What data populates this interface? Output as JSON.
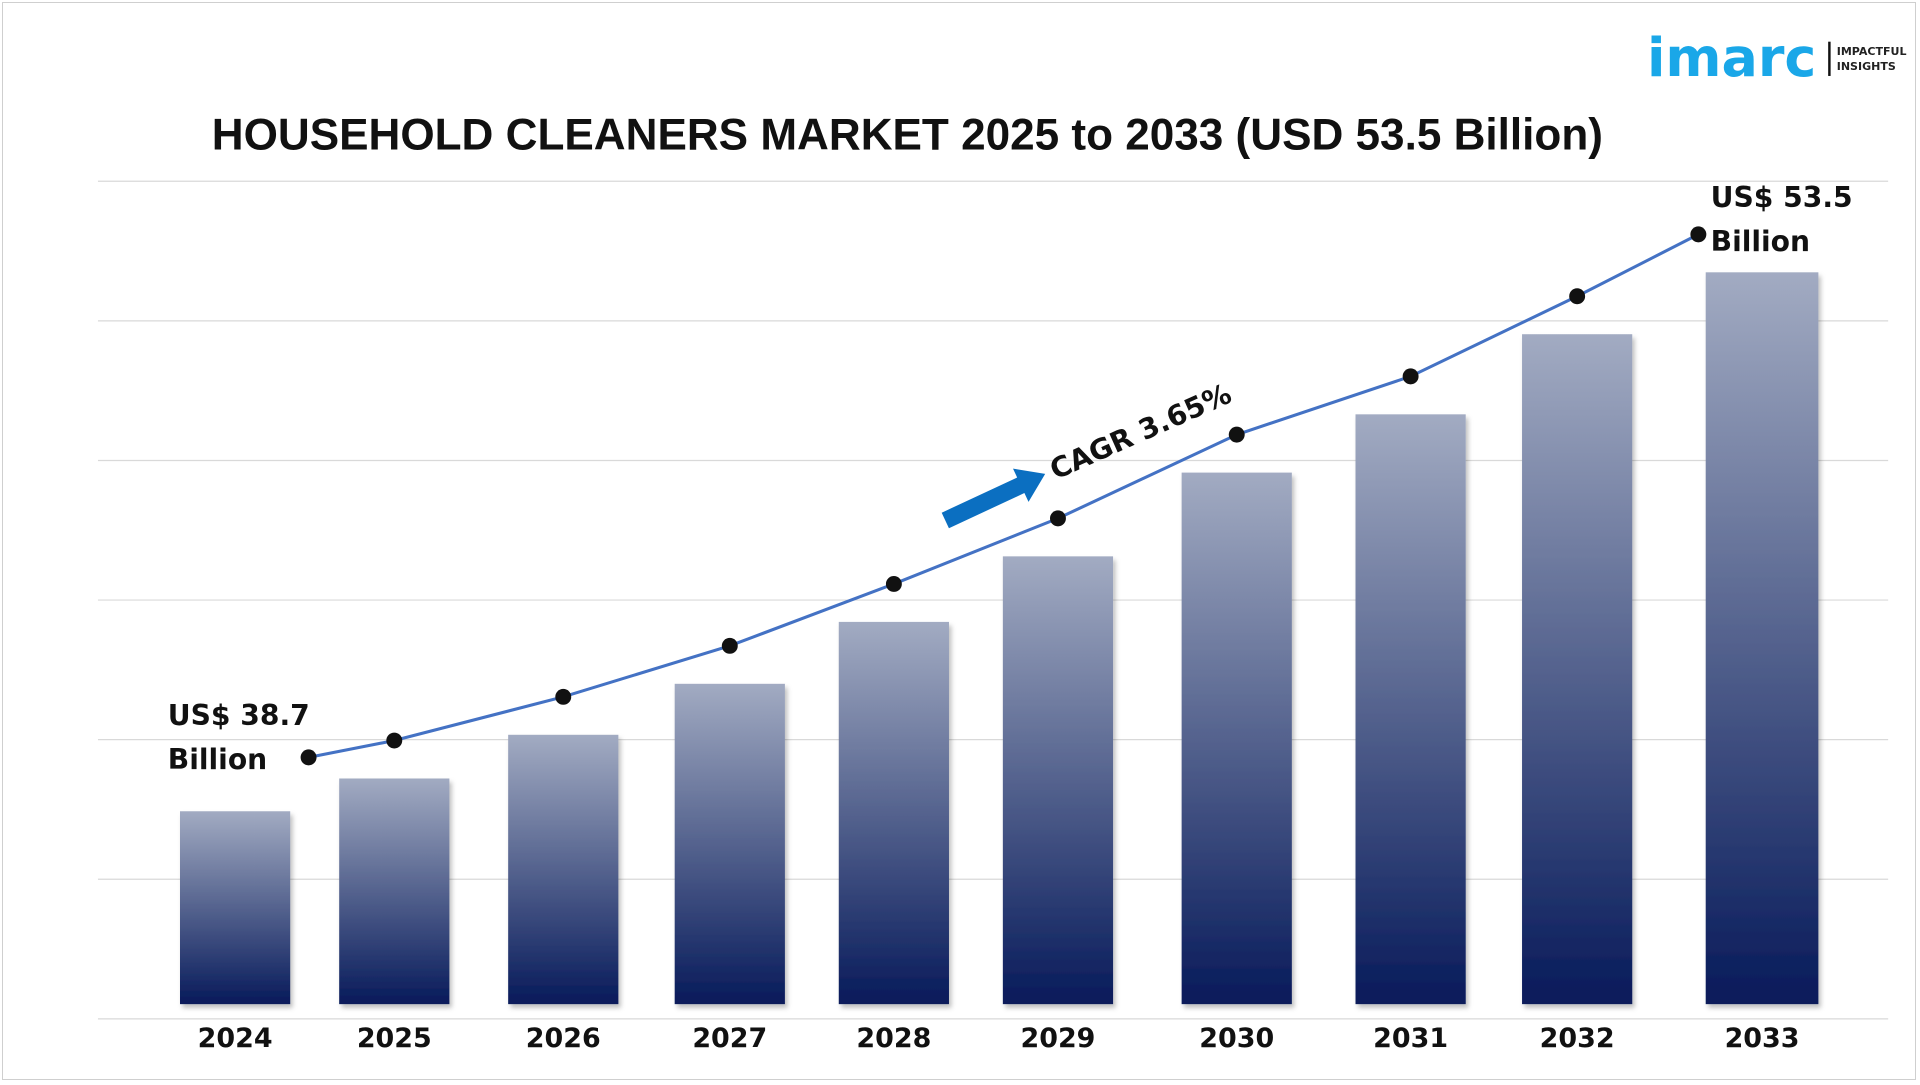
{
  "logo": {
    "brand": "imarc",
    "tagline_1": "IMPACTFUL",
    "tagline_2": "INSIGHTS"
  },
  "chart_data": {
    "type": "bar",
    "title": "HOUSEHOLD CLEANERS MARKET 2025 to 2033 (USD 53.5 Billion)",
    "categories": [
      "2024",
      "2025",
      "2026",
      "2027",
      "2028",
      "2029",
      "2030",
      "2031",
      "2032",
      "2033"
    ],
    "values": [
      38.7,
      39.6,
      40.8,
      42.2,
      43.9,
      45.7,
      48.0,
      49.6,
      51.8,
      53.5
    ],
    "ylim": [
      33,
      56
    ],
    "grid": true,
    "xlabel": "",
    "ylabel": "",
    "trend_line": true,
    "annotations": {
      "start_1": "US$ 38.7",
      "start_2": "Billion",
      "end_1": "US$ 53.5",
      "end_2": "Billion",
      "cagr": "CAGR 3.65%"
    },
    "colors": {
      "bar_top": "#a2abc2",
      "bar_bottom": "#071a5a",
      "line": "#4472c4",
      "marker": "#111111",
      "arrow": "#0b6fc1",
      "grid": "#d9d9d9"
    }
  }
}
